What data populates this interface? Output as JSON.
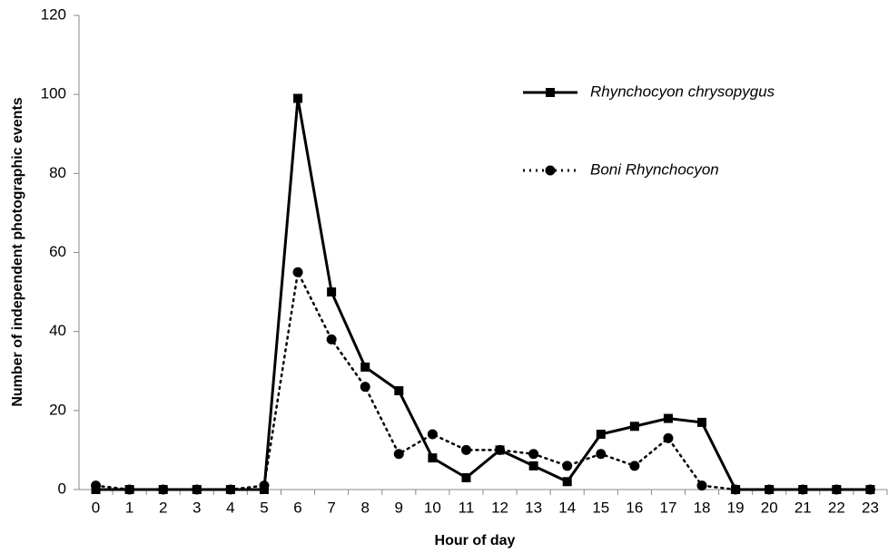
{
  "chart_data": {
    "type": "line",
    "x_label": "Hour of day",
    "y_label": "Number of independent photographic events",
    "categories": [
      "0",
      "1",
      "2",
      "3",
      "4",
      "5",
      "6",
      "7",
      "8",
      "9",
      "10",
      "11",
      "12",
      "13",
      "14",
      "15",
      "16",
      "17",
      "18",
      "19",
      "20",
      "21",
      "22",
      "23"
    ],
    "series": [
      {
        "name": "Rhynchocyon chrysopygus",
        "color": "#000000",
        "style": "solid",
        "marker": "square",
        "values": [
          0,
          0,
          0,
          0,
          0,
          0,
          99,
          50,
          31,
          25,
          8,
          3,
          10,
          6,
          2,
          14,
          16,
          18,
          17,
          0,
          0,
          0,
          0,
          0
        ]
      },
      {
        "name": "Boni Rhynchocyon",
        "color": "#000000",
        "style": "dotted",
        "marker": "circle",
        "values": [
          1,
          0,
          0,
          0,
          0,
          1,
          55,
          38,
          26,
          9,
          14,
          10,
          10,
          9,
          6,
          9,
          6,
          13,
          1,
          0,
          0,
          0,
          0,
          0
        ]
      }
    ],
    "ylim": [
      0,
      120
    ],
    "yticks": [
      0,
      20,
      40,
      60,
      80,
      100,
      120
    ],
    "grid": false
  }
}
